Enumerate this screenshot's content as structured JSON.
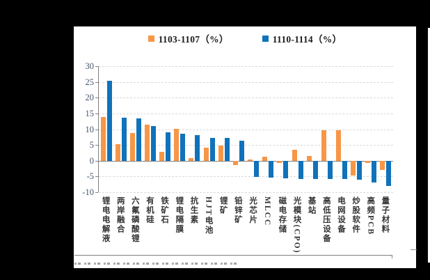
{
  "window": {
    "background_color": "#000000",
    "panel_color": "#ffffff"
  },
  "legend": {
    "position": "top-center"
  },
  "chart_data": {
    "type": "bar",
    "title": "",
    "xlabel": "",
    "ylabel": "",
    "categories": [
      "锂电电解液",
      "两岸融合",
      "六氟磷酸锂",
      "有机硅",
      "铁矿石",
      "锂电隔膜",
      "抗生素",
      "HJT电池",
      "锂矿",
      "铅锌矿",
      "光芯片",
      "MLCC",
      "磁电存储",
      "光模块(CPO)",
      "基站",
      "高低压设备",
      "电网设备",
      "炒股软件",
      "高频PCB",
      "量子材料"
    ],
    "series": [
      {
        "name": "1103-1107（%）",
        "color": "#F79646",
        "values": [
          13.9,
          5.2,
          8.8,
          11.5,
          2.8,
          10.1,
          0.9,
          4.1,
          4.9,
          -1.3,
          0.3,
          1.2,
          -0.7,
          3.4,
          1.5,
          9.6,
          9.6,
          -4.6,
          -0.8,
          -3.0
        ]
      },
      {
        "name": "1110-1114（%）",
        "color": "#1072BA",
        "values": [
          25.4,
          13.6,
          13.5,
          11.0,
          8.9,
          8.6,
          8.1,
          7.3,
          7.3,
          6.4,
          -5.2,
          -5.3,
          -5.5,
          -5.8,
          -5.8,
          -5.9,
          -5.8,
          -6.0,
          -7.0,
          -8.0
        ]
      }
    ],
    "ylim": [
      -10,
      30
    ],
    "yticks": [
      30,
      25,
      20,
      15,
      10,
      5,
      0,
      -5,
      -10
    ],
    "grid": "horizontal-dashed",
    "legend_position": "top-center",
    "axis_color": "#7f7f7f",
    "tick_label_color": "#44546a",
    "category_label_color": "#333333"
  }
}
